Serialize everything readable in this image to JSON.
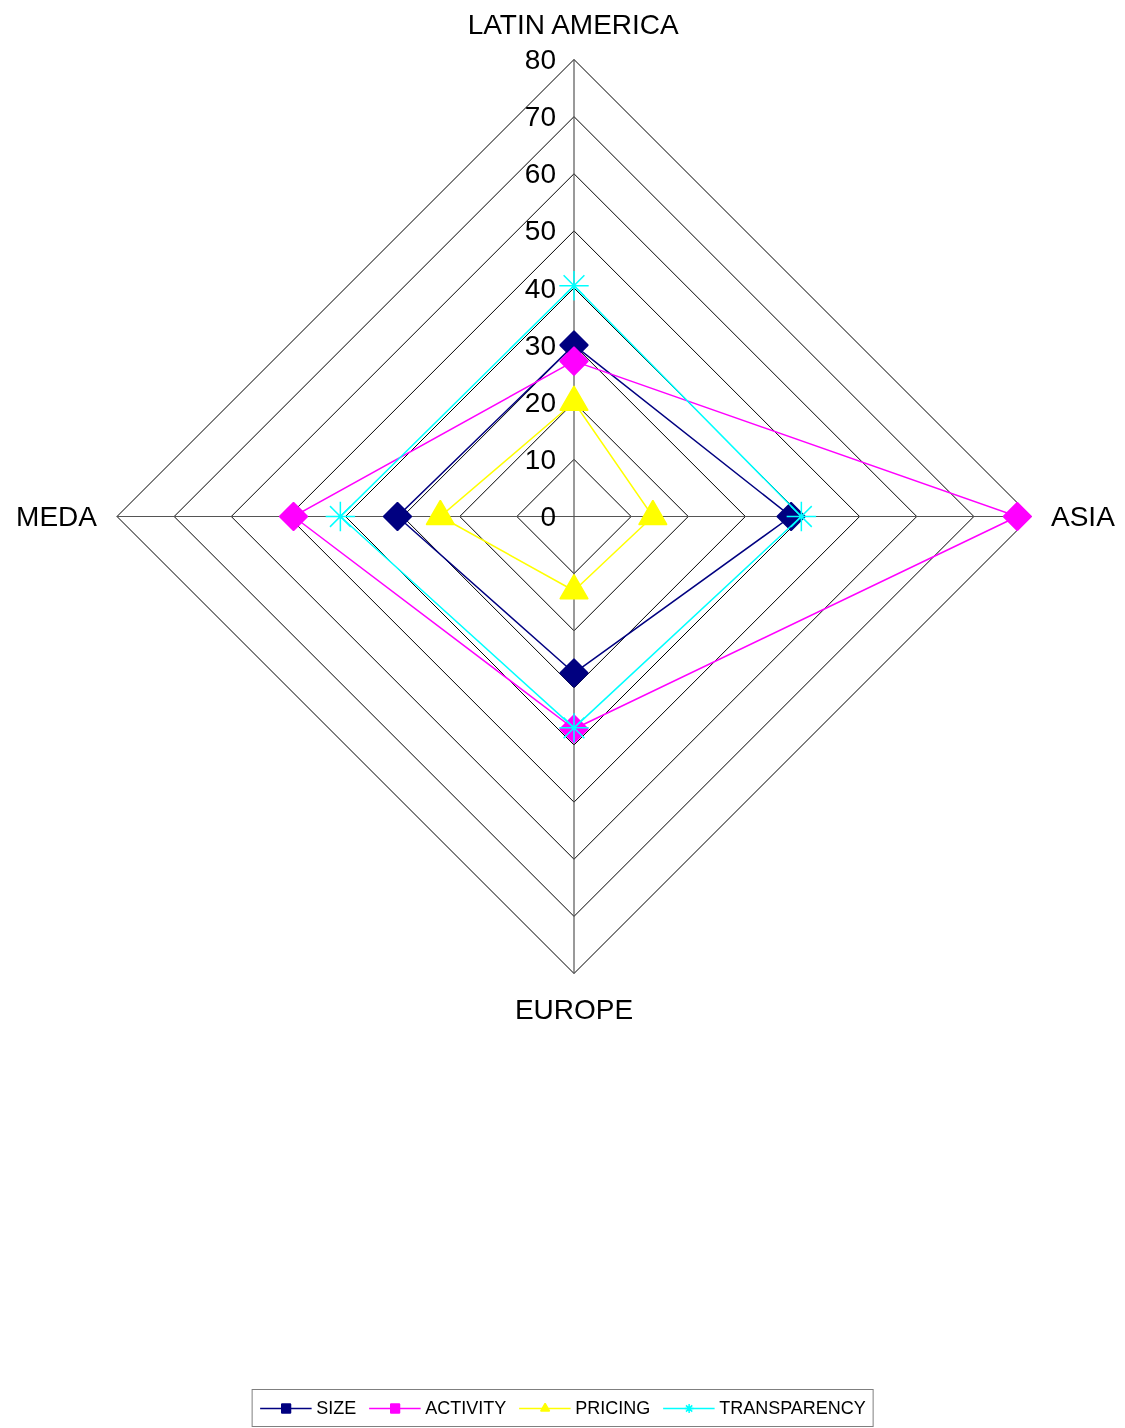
{
  "chart_data": {
    "type": "radar",
    "categories": [
      "LATIN AMERICA",
      "ASIA",
      "EUROPE",
      "MEDA"
    ],
    "series": [
      {
        "name": "SIZE",
        "color": "#000080",
        "marker": "diamond",
        "values": [
          30,
          38,
          27.4,
          30.9
        ]
      },
      {
        "name": "ACTIVITY",
        "color": "#ff00ff",
        "marker": "diamond",
        "values": [
          27.2,
          77.6,
          37.2,
          49.1
        ]
      },
      {
        "name": "PRICING",
        "color": "#ffff00",
        "marker": "triangle",
        "values": [
          20,
          13.8,
          13,
          23.4
        ]
      },
      {
        "name": "TRANSPARENCY",
        "color": "#00ffff",
        "marker": "star",
        "values": [
          40.4,
          39.8,
          37,
          40.9
        ]
      }
    ],
    "ylim": [
      0,
      80
    ],
    "yticks": [
      0,
      10,
      20,
      30,
      40,
      50,
      60,
      70,
      80
    ],
    "grid": true,
    "legend": "bottom"
  }
}
